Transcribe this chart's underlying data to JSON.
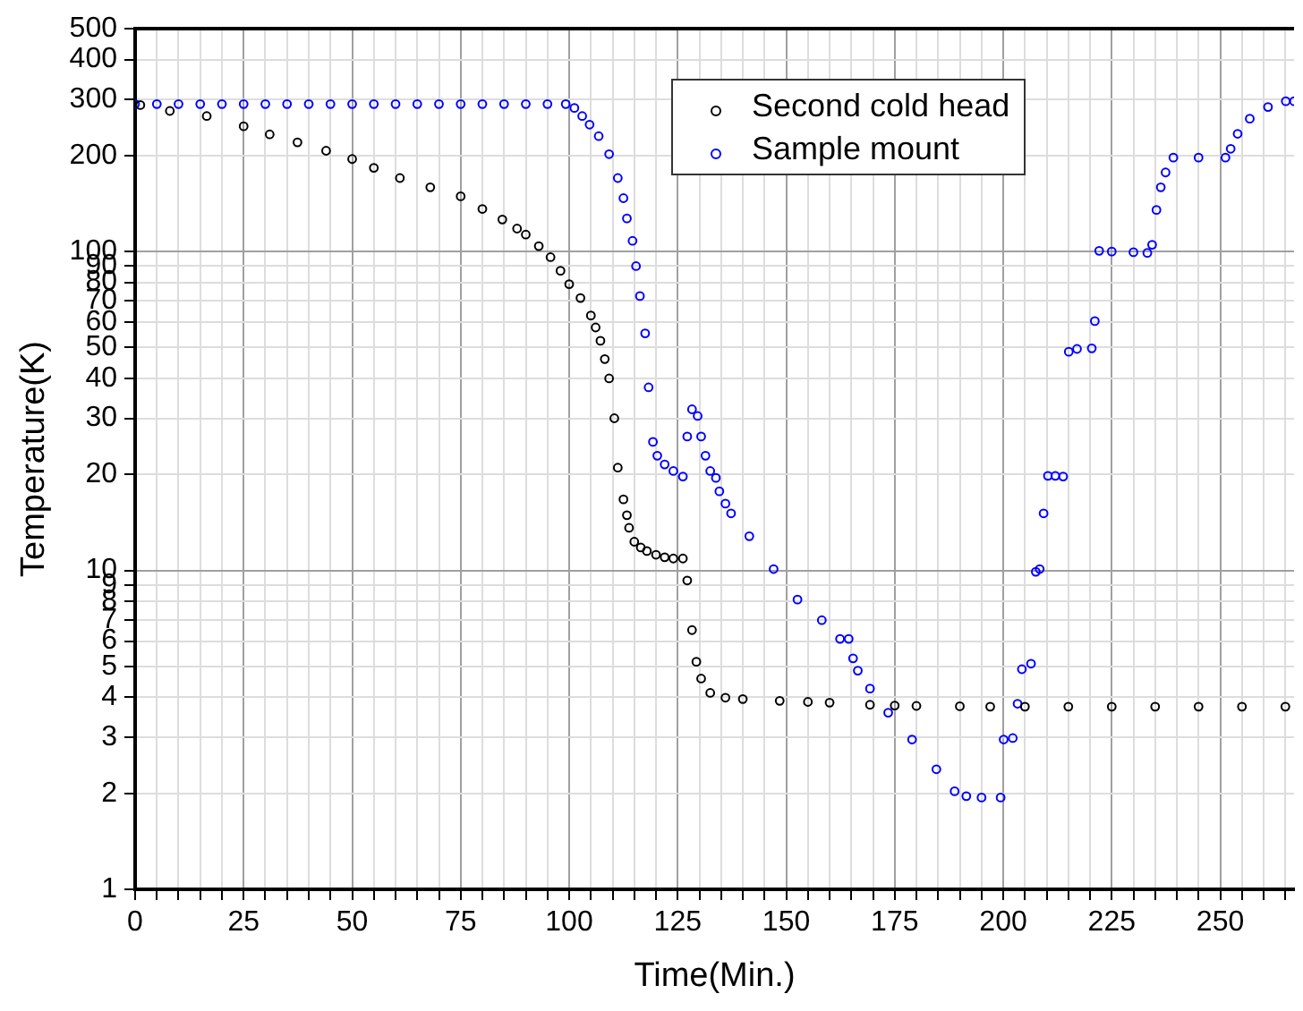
{
  "chart_data": {
    "type": "scatter",
    "xlabel": "Time(Min.)",
    "ylabel": "Temperature(K)",
    "log": "y",
    "grid": true,
    "legend": "top right",
    "marker": "circle",
    "xlim": [
      0,
      267
    ],
    "ylim": [
      1,
      500
    ],
    "xticks": [
      0,
      {
        "value": 5,
        "label": null
      },
      {
        "value": 10,
        "label": null
      },
      {
        "value": 15,
        "label": null
      },
      {
        "value": 20,
        "label": null
      },
      25,
      {
        "value": 30,
        "label": null
      },
      {
        "value": 35,
        "label": null
      },
      {
        "value": 40,
        "label": null
      },
      {
        "value": 45,
        "label": null
      },
      50,
      {
        "value": 55,
        "label": null
      },
      {
        "value": 60,
        "label": null
      },
      {
        "value": 65,
        "label": null
      },
      {
        "value": 70,
        "label": null
      },
      75,
      {
        "value": 80,
        "label": null
      },
      {
        "value": 85,
        "label": null
      },
      {
        "value": 90,
        "label": null
      },
      {
        "value": 95,
        "label": null
      },
      100,
      {
        "value": 105,
        "label": null
      },
      {
        "value": 110,
        "label": null
      },
      {
        "value": 115,
        "label": null
      },
      {
        "value": 120,
        "label": null
      },
      125,
      {
        "value": 130,
        "label": null
      },
      {
        "value": 135,
        "label": null
      },
      {
        "value": 140,
        "label": null
      },
      {
        "value": 145,
        "label": null
      },
      150,
      {
        "value": 155,
        "label": null
      },
      {
        "value": 160,
        "label": null
      },
      {
        "value": 165,
        "label": null
      },
      {
        "value": 170,
        "label": null
      },
      175,
      {
        "value": 180,
        "label": null
      },
      {
        "value": 185,
        "label": null
      },
      {
        "value": 190,
        "label": null
      },
      {
        "value": 195,
        "label": null
      },
      200,
      {
        "value": 205,
        "label": null
      },
      {
        "value": 210,
        "label": null
      },
      {
        "value": 215,
        "label": null
      },
      {
        "value": 220,
        "label": null
      },
      225,
      {
        "value": 230,
        "label": null
      },
      {
        "value": 235,
        "label": null
      },
      {
        "value": 240,
        "label": null
      },
      {
        "value": 245,
        "label": null
      },
      250,
      {
        "value": 255,
        "label": null
      },
      {
        "value": 260,
        "label": null
      },
      {
        "value": 265,
        "label": null
      }
    ],
    "yticks": [
      1,
      2,
      3,
      4,
      5,
      6,
      7,
      8,
      9,
      10,
      20,
      30,
      40,
      50,
      60,
      70,
      80,
      90,
      100,
      200,
      300,
      400,
      500
    ],
    "series": [
      {
        "name": "Second cold head",
        "color": "#000000",
        "x": [
          1.2,
          8,
          16.5,
          25,
          31,
          37.4,
          44,
          50,
          55,
          61,
          68,
          75,
          80,
          84.6,
          88,
          90,
          93,
          95.7,
          98,
          100,
          102.6,
          105,
          106.1,
          107.2,
          108.2,
          109.2,
          110.4,
          111.2,
          112.5,
          113.3,
          113.8,
          115,
          116.5,
          117.9,
          120,
          122,
          124,
          126.2,
          127.2,
          128.3,
          129.3,
          130.4,
          132.5,
          136,
          140,
          148.5,
          155,
          160,
          169.3,
          175,
          180,
          190,
          197,
          205,
          215,
          225,
          235,
          245,
          255,
          265
        ],
        "values": [
          288,
          276,
          266,
          247,
          233,
          220,
          207,
          195,
          183,
          170,
          159,
          149,
          136,
          126,
          118,
          113,
          104,
          96,
          87,
          79,
          71.5,
          63,
          57.8,
          52.5,
          46,
          40,
          30,
          21,
          16.7,
          14.9,
          13.6,
          12.3,
          11.8,
          11.5,
          11.2,
          11,
          10.9,
          10.9,
          9.3,
          6.5,
          5.17,
          4.58,
          4.13,
          3.99,
          3.95,
          3.9,
          3.87,
          3.85,
          3.79,
          3.77,
          3.76,
          3.75,
          3.74,
          3.74,
          3.74,
          3.74,
          3.74,
          3.74,
          3.74,
          3.74
        ]
      },
      {
        "name": "Sample mount",
        "color": "#0000ff",
        "x": [
          0,
          5,
          10,
          15,
          20,
          25,
          30,
          35,
          40,
          45,
          50,
          55,
          60,
          65,
          70,
          75,
          80,
          85,
          90,
          95,
          99.2,
          101.2,
          103,
          104.7,
          106.8,
          109.2,
          111.2,
          112.5,
          113.3,
          114.6,
          115.4,
          116.3,
          117.5,
          118.3,
          119.3,
          120.3,
          122,
          124,
          126.2,
          127.2,
          128.3,
          129.6,
          130.4,
          131.4,
          132.5,
          133.8,
          134.6,
          136,
          137.3,
          141.5,
          147.1,
          152.6,
          158.2,
          162.4,
          164.4,
          165.4,
          166.5,
          169.3,
          173.5,
          179,
          184.6,
          188.8,
          191.5,
          195,
          199.4,
          200.1,
          202.2,
          203.3,
          204.3,
          206.4,
          207.5,
          208.4,
          209.3,
          210.3,
          212,
          213.8,
          215.1,
          217,
          220.4,
          221.1,
          222.1,
          225,
          230,
          233.2,
          234.3,
          235.3,
          236.3,
          237.4,
          239.2,
          245,
          251.2,
          252.4,
          254,
          256.8,
          261,
          265.1,
          267
        ],
        "values": [
          290,
          290,
          290,
          290,
          290,
          290,
          290,
          290,
          290,
          290,
          290,
          290,
          290,
          290,
          290,
          290,
          290,
          290,
          290,
          290,
          290,
          282,
          266,
          250,
          230,
          202,
          170,
          147,
          127,
          108,
          90,
          72.5,
          55.4,
          37.5,
          25.3,
          22.9,
          21.5,
          20.5,
          19.7,
          26.3,
          32,
          30.5,
          26.3,
          22.9,
          20.5,
          19.5,
          17.7,
          16.2,
          15.1,
          12.8,
          10.1,
          8.1,
          6.98,
          6.1,
          6.1,
          5.3,
          4.85,
          4.26,
          3.58,
          2.95,
          2.38,
          2.03,
          1.96,
          1.94,
          1.94,
          2.95,
          2.98,
          3.82,
          4.9,
          5.1,
          9.9,
          10.1,
          15.1,
          19.8,
          19.8,
          19.7,
          48.5,
          49.5,
          49.7,
          60.5,
          100.5,
          100,
          99.5,
          99,
          105,
          135,
          159,
          177,
          197,
          197,
          197,
          210,
          234,
          261,
          284,
          296,
          296
        ]
      }
    ]
  }
}
